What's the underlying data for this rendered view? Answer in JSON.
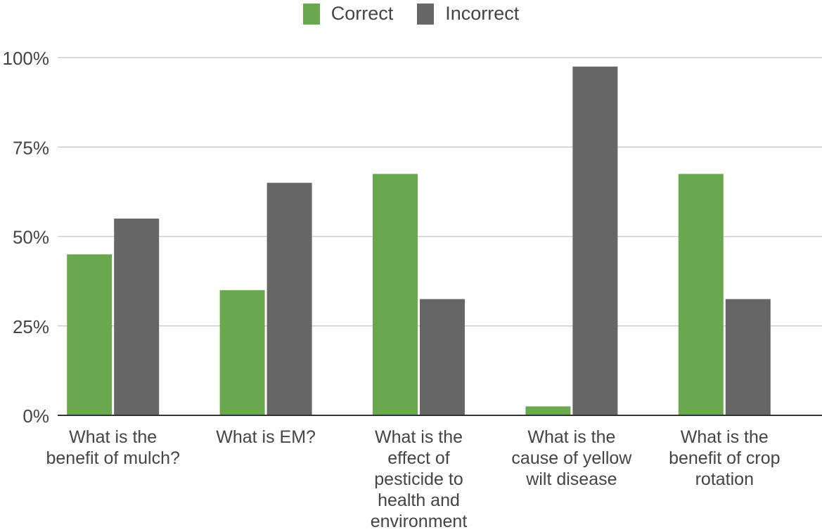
{
  "legend": {
    "items": [
      {
        "label": "Correct",
        "color": "#6aa84f"
      },
      {
        "label": "Incorrect",
        "color": "#666666"
      }
    ]
  },
  "chart_data": {
    "type": "bar",
    "title": "",
    "xlabel": "",
    "ylabel": "",
    "ylim": [
      0,
      100
    ],
    "yticks": [
      "0%",
      "25%",
      "50%",
      "75%",
      "100%"
    ],
    "ytick_values": [
      0,
      25,
      50,
      75,
      100
    ],
    "grid": true,
    "legend_position": "top-center",
    "categories": [
      [
        "What is the",
        "benefit of mulch?"
      ],
      [
        "What is EM?"
      ],
      [
        "What is the",
        "effect of",
        "pesticide to",
        "health and",
        "environment"
      ],
      [
        "What is the",
        "cause of yellow",
        "wilt disease"
      ],
      [
        "What is the",
        "benefit of crop",
        "rotation"
      ]
    ],
    "series": [
      {
        "name": "Correct",
        "color": "#6aa84f",
        "values": [
          45,
          35,
          67.5,
          2.5,
          67.5
        ]
      },
      {
        "name": "Incorrect",
        "color": "#666666",
        "values": [
          55,
          65,
          32.5,
          97.5,
          32.5
        ]
      }
    ]
  }
}
